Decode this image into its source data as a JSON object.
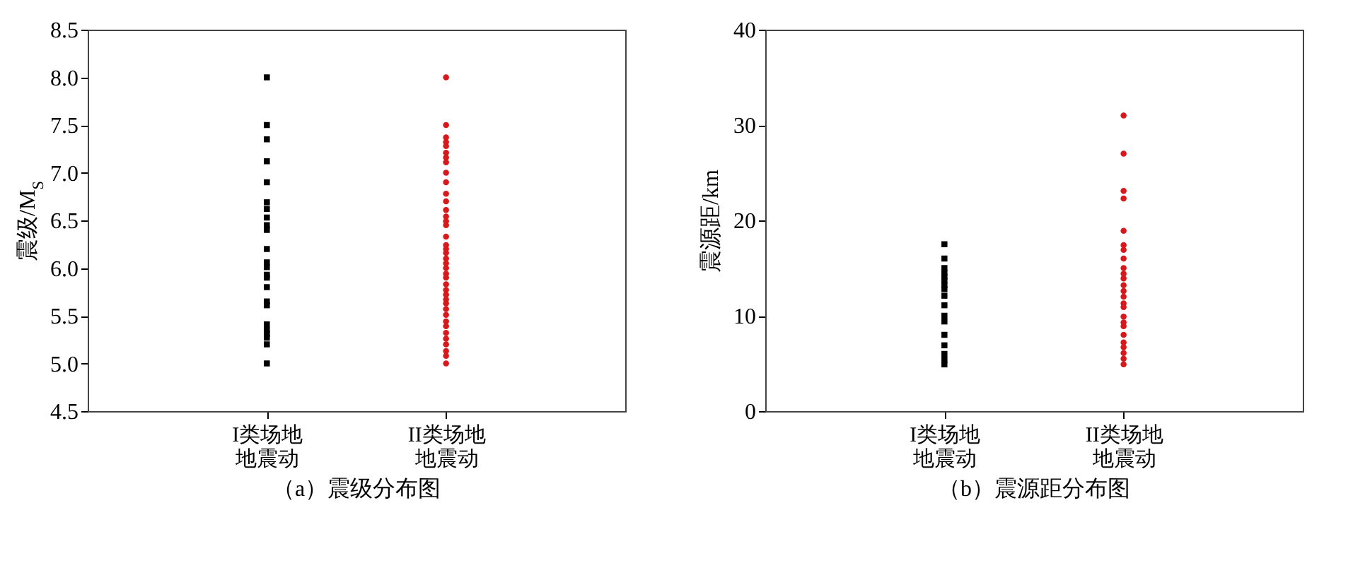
{
  "chart_data": [
    {
      "type": "scatter",
      "title": "（a）震级分布图",
      "ylabel": "震级/M$_{S}$",
      "categories": [
        "I类场地地震动",
        "II类场地地震动"
      ],
      "ylim": [
        4.5,
        8.5
      ],
      "yticks": [
        4.5,
        {
          "value": 5,
          "label": "5.0"
        },
        5.5,
        {
          "value": 6,
          "label": "6.0"
        },
        6.5,
        {
          "value": 7,
          "label": "7.0"
        },
        7.5,
        {
          "value": 8,
          "label": "8.0"
        },
        8.5
      ],
      "grid": false,
      "legend": false,
      "series": [
        {
          "color": "#000000",
          "marker": "square",
          "x": [
            "I类场地地震动",
            "I类场地地震动",
            "I类场地地震动",
            "I类场地地震动",
            "I类场地地震动",
            "I类场地地震动",
            "I类场地地震动",
            "I类场地地震动",
            "I类场地地震动",
            "I类场地地震动",
            "I类场地地震动",
            "I类场地地震动",
            "I类场地地震动",
            "I类场地地震动",
            "I类场地地震动",
            "I类场地地震动",
            "I类场地地震动",
            "I类场地地震动",
            "I类场地地震动",
            "I类场地地震动",
            "I类场地地震动",
            "I类场地地震动",
            "I类场地地震动",
            "I类场地地震动"
          ],
          "values": [
            8.0,
            7.5,
            7.35,
            7.12,
            6.9,
            6.69,
            6.62,
            6.53,
            6.45,
            6.4,
            6.2,
            6.06,
            6.01,
            5.93,
            5.9,
            5.8,
            5.65,
            5.61,
            5.41,
            5.35,
            5.31,
            5.27,
            5.2,
            5.0
          ]
        },
        {
          "color": "#d7191c",
          "marker": "circle",
          "x": [
            "II类场地地震动",
            "II类场地地震动",
            "II类场地地震动",
            "II类场地地震动",
            "II类场地地震动",
            "II类场地地震动",
            "II类场地地震动",
            "II类场地地震动",
            "II类场地地震动",
            "II类场地地震动",
            "II类场地地震动",
            "II类场地地震动",
            "II类场地地震动",
            "II类场地地震动",
            "II类场地地震动",
            "II类场地地震动",
            "II类场地地震动",
            "II类场地地震动",
            "II类场地地震动",
            "II类场地地震动",
            "II类场地地震动",
            "II类场地地震动",
            "II类场地地震动",
            "II类场地地震动",
            "II类场地地震动",
            "II类场地地震动",
            "II类场地地震动",
            "II类场地地震动",
            "II类场地地震动",
            "II类场地地震动",
            "II类场地地震动",
            "II类场地地震动",
            "II类场地地震动",
            "II类场地地震动",
            "II类场地地震动",
            "II类场地地震动",
            "II类场地地震动",
            "II类场地地震动",
            "II类场地地震动",
            "II类场地地震动"
          ],
          "values": [
            8.0,
            7.5,
            7.37,
            7.32,
            7.28,
            7.21,
            7.16,
            7.11,
            7.0,
            6.9,
            6.78,
            6.7,
            6.61,
            6.54,
            6.49,
            6.45,
            6.33,
            6.24,
            6.2,
            6.16,
            6.1,
            6.05,
            6.0,
            5.94,
            5.9,
            5.83,
            5.77,
            5.72,
            5.67,
            5.63,
            5.57,
            5.51,
            5.44,
            5.39,
            5.32,
            5.26,
            5.2,
            5.13,
            5.08,
            5.0
          ]
        }
      ]
    },
    {
      "type": "scatter",
      "title": "（b）震源距分布图",
      "ylabel": "震源距/km",
      "categories": [
        "I类场地地震动",
        "II类场地地震动"
      ],
      "ylim": [
        0,
        40
      ],
      "yticks": [
        0,
        10,
        20,
        30,
        40
      ],
      "grid": false,
      "legend": false,
      "series": [
        {
          "color": "#000000",
          "marker": "square",
          "x": [
            "I类场地地震动",
            "I类场地地震动",
            "I类场地地震动",
            "I类场地地震动",
            "I类场地地震动",
            "I类场地地震动",
            "I类场地地震动",
            "I类场地地震动",
            "I类场地地震动",
            "I类场地地震动",
            "I类场地地震动",
            "I类场地地震动",
            "I类场地地震动",
            "I类场地地震动",
            "I类场地地震动",
            "I类场地地震动",
            "I类场地地震动"
          ],
          "values": [
            17.5,
            16.0,
            15.0,
            14.5,
            14.1,
            13.7,
            13.2,
            12.8,
            12.1,
            11.1,
            10.0,
            9.4,
            8.0,
            6.9,
            6.0,
            5.4,
            4.9
          ]
        },
        {
          "color": "#d7191c",
          "marker": "circle",
          "x": [
            "II类场地地震动",
            "II类场地地震动",
            "II类场地地震动",
            "II类场地地震动",
            "II类场地地震动",
            "II类场地地震动",
            "II类场地地震动",
            "II类场地地震动",
            "II类场地地震动",
            "II类场地地震动",
            "II类场地地震动",
            "II类场地地震动",
            "II类场地地震动",
            "II类场地地震动",
            "II类场地地震动",
            "II类场地地震动",
            "II类场地地震动",
            "II类场地地震动",
            "II类场地地震动",
            "II类场地地震动",
            "II类场地地震动",
            "II类场地地震动",
            "II类场地地震动",
            "II类场地地震动",
            "II类场地地震动"
          ],
          "values": [
            31.0,
            27.0,
            23.1,
            22.3,
            18.9,
            17.4,
            16.9,
            16.0,
            15.0,
            14.4,
            13.9,
            13.2,
            12.6,
            12.0,
            11.3,
            10.9,
            9.9,
            9.3,
            8.9,
            8.0,
            7.2,
            6.7,
            6.1,
            5.5,
            4.9
          ]
        }
      ]
    }
  ]
}
